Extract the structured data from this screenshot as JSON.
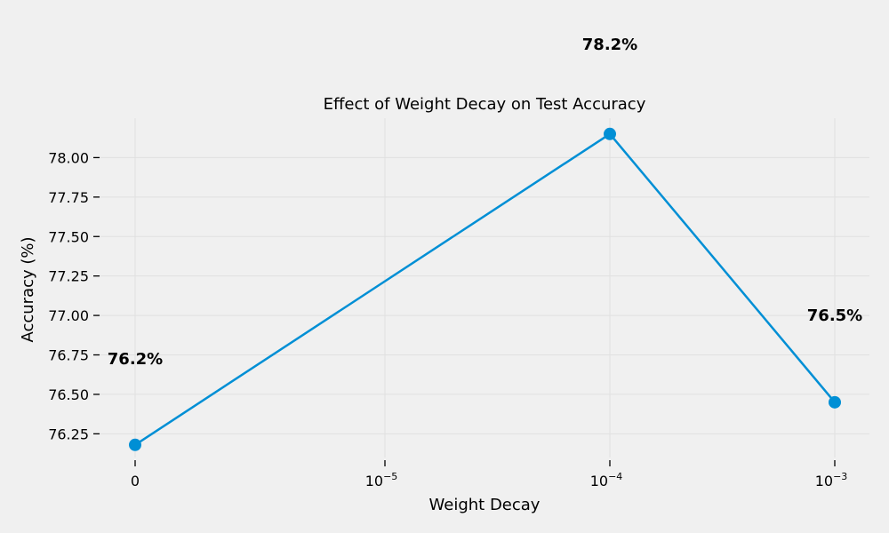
{
  "chart_data": {
    "type": "line",
    "title": "Effect of Weight Decay on Test Accuracy",
    "xlabel": "Weight Decay",
    "ylabel": "Accuracy (%)",
    "categories": [
      "0",
      "10^-5",
      "10^-4",
      "10^-3"
    ],
    "x_tick_labels": [
      {
        "base": "0",
        "exp": ""
      },
      {
        "base": "10",
        "exp": "−5"
      },
      {
        "base": "10",
        "exp": "−4"
      },
      {
        "base": "10",
        "exp": "−3"
      }
    ],
    "points": [
      {
        "x": 0,
        "y": 76.18,
        "label": "76.2%"
      },
      {
        "x": 0.0001,
        "y": 78.15,
        "label": "78.2%"
      },
      {
        "x": 0.001,
        "y": 76.45,
        "label": "76.5%"
      }
    ],
    "ylim": [
      76.1,
      78.25
    ],
    "y_ticks": [
      76.25,
      76.5,
      76.75,
      77.0,
      77.25,
      77.5,
      77.75,
      78.0
    ],
    "y_tick_labels": [
      "76.25",
      "76.50",
      "76.75",
      "77.00",
      "77.25",
      "77.50",
      "77.75",
      "78.00"
    ],
    "grid": true,
    "colors": {
      "line": "#008fd5",
      "background": "#f0f0f0",
      "grid": "#e0e0e0"
    }
  }
}
